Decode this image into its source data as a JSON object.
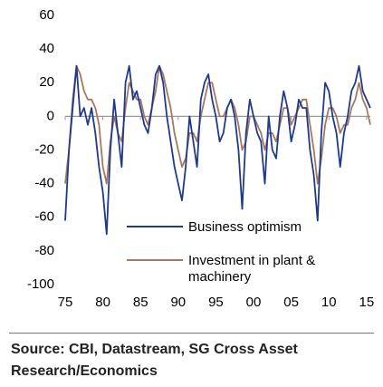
{
  "chart_data": {
    "type": "line",
    "x": [
      1975,
      1975.5,
      1976,
      1976.5,
      1977,
      1977.5,
      1978,
      1978.5,
      1979,
      1979.5,
      1980,
      1980.5,
      1981,
      1981.5,
      1982,
      1982.5,
      1983,
      1983.5,
      1984,
      1984.5,
      1985,
      1985.5,
      1986,
      1986.5,
      1987,
      1987.5,
      1988,
      1988.5,
      1989,
      1989.5,
      1990,
      1990.5,
      1991,
      1991.5,
      1992,
      1992.5,
      1993,
      1993.5,
      1994,
      1994.5,
      1995,
      1995.5,
      1996,
      1996.5,
      1997,
      1997.5,
      1998,
      1998.5,
      1999,
      1999.5,
      2000,
      2000.5,
      2001,
      2001.5,
      2002,
      2002.5,
      2003,
      2003.5,
      2004,
      2004.5,
      2005,
      2005.5,
      2006,
      2006.5,
      2007,
      2007.5,
      2008,
      2008.5,
      2009,
      2009.5,
      2010,
      2010.5,
      2011,
      2011.5,
      2012,
      2012.5,
      2013,
      2013.5,
      2014,
      2014.5,
      2015,
      2015.5
    ],
    "series": [
      {
        "name": "Business optimism",
        "color": "#1f3a8a",
        "values": [
          -62,
          -20,
          5,
          30,
          0,
          5,
          -5,
          5,
          -10,
          -30,
          -45,
          -70,
          -20,
          10,
          -10,
          -30,
          20,
          30,
          10,
          15,
          5,
          -5,
          -10,
          5,
          25,
          30,
          20,
          0,
          -15,
          -30,
          -40,
          -50,
          -30,
          0,
          -15,
          -30,
          10,
          20,
          25,
          10,
          0,
          -15,
          -10,
          5,
          10,
          0,
          -20,
          -55,
          -10,
          10,
          0,
          -10,
          -15,
          -40,
          0,
          -20,
          -25,
          0,
          15,
          5,
          -15,
          -5,
          10,
          5,
          5,
          -20,
          -35,
          -62,
          -10,
          20,
          15,
          0,
          -10,
          -30,
          -10,
          0,
          15,
          20,
          30,
          15,
          10,
          5
        ]
      },
      {
        "name": "Investment in plant & machinery",
        "color": "#a57864",
        "values": [
          -40,
          -20,
          10,
          30,
          25,
          15,
          10,
          10,
          5,
          -5,
          -30,
          -40,
          -15,
          0,
          -10,
          -15,
          5,
          20,
          15,
          10,
          10,
          0,
          -5,
          5,
          15,
          30,
          25,
          15,
          5,
          -10,
          -20,
          -30,
          -25,
          -10,
          -10,
          -15,
          0,
          10,
          20,
          20,
          10,
          0,
          0,
          5,
          10,
          5,
          -5,
          -20,
          -15,
          0,
          0,
          -5,
          -10,
          -20,
          -10,
          -10,
          -15,
          -5,
          5,
          5,
          -5,
          0,
          5,
          10,
          10,
          -5,
          -20,
          -40,
          -25,
          -5,
          5,
          5,
          0,
          -10,
          -5,
          -5,
          5,
          10,
          20,
          10,
          5,
          -5
        ]
      }
    ],
    "xlim": [
      1975,
      2015.5
    ],
    "xticks": [
      {
        "value": 1975,
        "label": "75"
      },
      {
        "value": 1980,
        "label": "80"
      },
      {
        "value": 1985,
        "label": "85"
      },
      {
        "value": 1990,
        "label": "90"
      },
      {
        "value": 1995,
        "label": "95"
      },
      {
        "value": 2000,
        "label": "00"
      },
      {
        "value": 2005,
        "label": "05"
      },
      {
        "value": 2010,
        "label": "10"
      },
      {
        "value": 2015,
        "label": "15"
      }
    ],
    "ylim": [
      -100,
      60
    ],
    "yticks": [
      -100,
      -80,
      -60,
      -40,
      -20,
      0,
      20,
      40,
      60
    ],
    "source": "Source: CBI, Datastream, SG Cross Asset Research/Economics"
  }
}
